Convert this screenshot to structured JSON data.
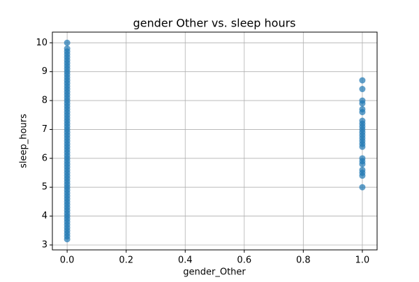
{
  "chart_data": {
    "type": "scatter",
    "title": "gender Other vs. sleep hours",
    "x_label": "gender_Other",
    "y_label": "sleep_hours",
    "x": [
      0,
      0,
      0,
      0,
      0,
      0,
      0,
      0,
      0,
      0,
      0,
      0,
      0,
      0,
      0,
      0,
      0,
      0,
      0,
      0,
      0,
      0,
      0,
      0,
      0,
      0,
      0,
      0,
      0,
      0,
      0,
      0,
      0,
      0,
      0,
      0,
      0,
      0,
      0,
      0,
      0,
      0,
      0,
      0,
      0,
      0,
      0,
      0,
      0,
      0,
      0,
      0,
      0,
      0,
      0,
      0,
      0,
      0,
      0,
      0,
      0,
      0,
      0,
      0,
      0,
      0,
      0,
      0,
      1,
      1,
      1,
      1,
      1,
      1,
      1,
      1,
      1,
      1,
      1,
      1,
      1,
      1,
      1,
      1,
      1,
      1,
      1,
      1,
      1,
      1,
      1
    ],
    "values": [
      3.2,
      3.3,
      3.4,
      3.5,
      3.6,
      3.7,
      3.8,
      3.9,
      4.0,
      4.1,
      4.2,
      4.3,
      4.4,
      4.5,
      4.6,
      4.7,
      4.8,
      4.9,
      5.0,
      5.1,
      5.2,
      5.3,
      5.4,
      5.5,
      5.6,
      5.7,
      5.8,
      5.9,
      6.0,
      6.1,
      6.2,
      6.3,
      6.4,
      6.5,
      6.6,
      6.7,
      6.8,
      6.9,
      7.0,
      7.1,
      7.2,
      7.3,
      7.4,
      7.5,
      7.6,
      7.7,
      7.8,
      7.9,
      8.0,
      8.1,
      8.2,
      8.3,
      8.4,
      8.5,
      8.6,
      8.7,
      8.8,
      8.9,
      9.0,
      9.1,
      9.2,
      9.3,
      9.4,
      9.5,
      9.6,
      9.7,
      9.8,
      10.0,
      8.7,
      8.4,
      8.0,
      7.9,
      7.7,
      7.6,
      7.3,
      7.2,
      7.1,
      7.0,
      6.9,
      6.8,
      6.7,
      6.6,
      6.5,
      6.4,
      6.0,
      5.9,
      5.8,
      5.6,
      5.5,
      5.4,
      5.0
    ],
    "color": "#1f77b4",
    "xlim": [
      -0.05,
      1.05
    ],
    "xticks": [
      {
        "value": 0,
        "label": "0.0"
      },
      {
        "value": 0.2,
        "label": "0.2"
      },
      {
        "value": 0.4,
        "label": "0.4"
      },
      {
        "value": 0.6,
        "label": "0.6"
      },
      {
        "value": 0.8,
        "label": "0.8"
      },
      {
        "value": 1,
        "label": "1.0"
      }
    ],
    "ylim": [
      2.83,
      10.37
    ],
    "yticks": [
      3,
      4,
      5,
      6,
      7,
      8,
      9,
      10
    ],
    "grid": true
  }
}
